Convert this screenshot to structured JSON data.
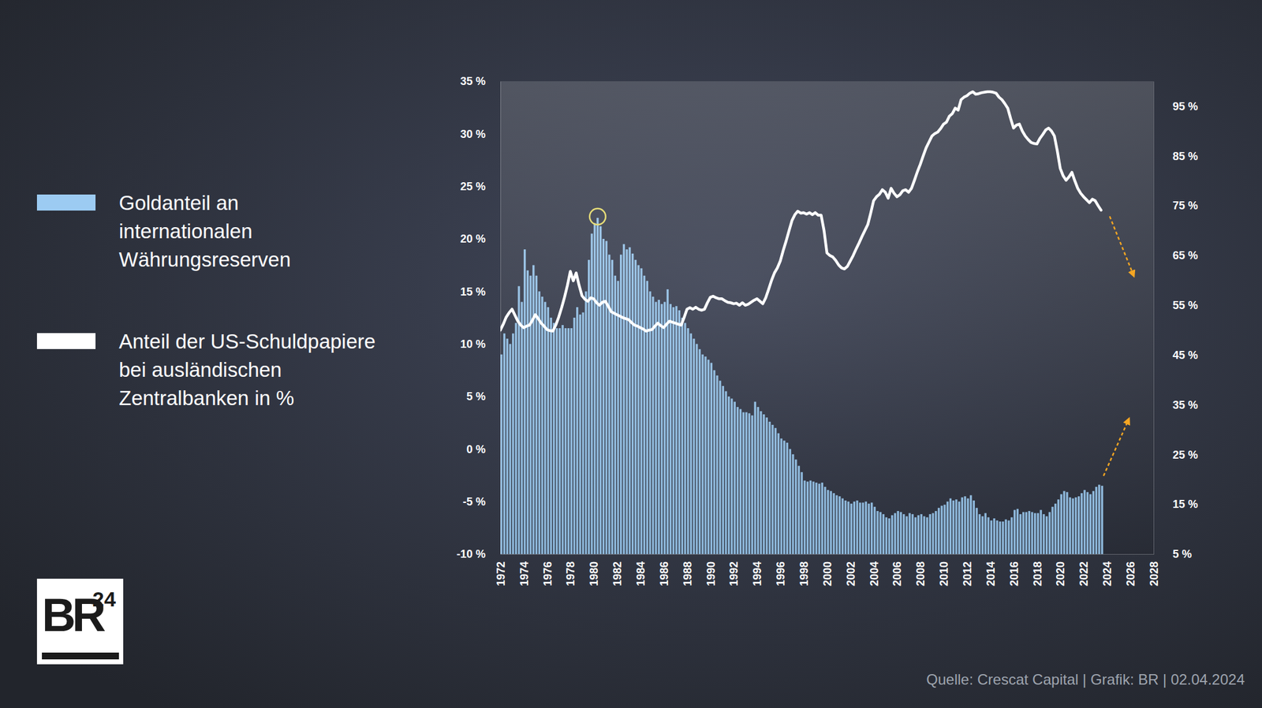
{
  "chart_data": {
    "type": "bar",
    "source": "Quelle: Crescat Capital | Grafik: BR | 02.04.2024",
    "logo": "BR",
    "logo_superscript": "24",
    "grid": false,
    "xlim": [
      1972,
      2028
    ],
    "xticks": [
      1972,
      1974,
      1976,
      1978,
      1980,
      1982,
      1984,
      1986,
      1988,
      1990,
      1992,
      1994,
      1996,
      1998,
      2000,
      2002,
      2004,
      2006,
      2008,
      2010,
      2012,
      2014,
      2016,
      2018,
      2020,
      2022,
      2024,
      2026,
      2028
    ],
    "ylim": [
      -10,
      35
    ],
    "yticks": [
      {
        "value": -10,
        "label": "-10 %"
      },
      {
        "value": -5,
        "label": "-5 %"
      },
      {
        "value": 0,
        "label": "0 %"
      },
      {
        "value": 5,
        "label": "5 %"
      },
      {
        "value": 10,
        "label": "10 %"
      },
      {
        "value": 15,
        "label": "15 %"
      },
      {
        "value": 20,
        "label": "20 %"
      },
      {
        "value": 25,
        "label": "25 %"
      },
      {
        "value": 30,
        "label": "30 %"
      },
      {
        "value": 35,
        "label": "35 %"
      }
    ],
    "y2lim": [
      5,
      100
    ],
    "y2ticks": [
      {
        "value": 5,
        "label": "5 %"
      },
      {
        "value": 15,
        "label": "15 %"
      },
      {
        "value": 25,
        "label": "25 %"
      },
      {
        "value": 35,
        "label": "35 %"
      },
      {
        "value": 45,
        "label": "45 %"
      },
      {
        "value": 55,
        "label": "55 %"
      },
      {
        "value": 65,
        "label": "65 %"
      },
      {
        "value": 75,
        "label": "75 %"
      },
      {
        "value": 85,
        "label": "85 %"
      },
      {
        "value": 95,
        "label": "95 %"
      }
    ],
    "x": [
      1972,
      1972.25,
      1972.5,
      1972.75,
      1973,
      1973.25,
      1973.5,
      1973.75,
      1974,
      1974.25,
      1974.5,
      1974.75,
      1975,
      1975.25,
      1975.5,
      1975.75,
      1976,
      1976.25,
      1976.5,
      1976.75,
      1977,
      1977.25,
      1977.5,
      1977.75,
      1978,
      1978.25,
      1978.5,
      1978.75,
      1979,
      1979.25,
      1979.5,
      1979.75,
      1980,
      1980.25,
      1980.5,
      1980.75,
      1981,
      1981.25,
      1981.5,
      1981.75,
      1982,
      1982.25,
      1982.5,
      1982.75,
      1983,
      1983.25,
      1983.5,
      1983.75,
      1984,
      1984.25,
      1984.5,
      1984.75,
      1985,
      1985.25,
      1985.5,
      1985.75,
      1986,
      1986.25,
      1986.5,
      1986.75,
      1987,
      1987.25,
      1987.5,
      1987.75,
      1988,
      1988.25,
      1988.5,
      1988.75,
      1989,
      1989.25,
      1989.5,
      1989.75,
      1990,
      1990.25,
      1990.5,
      1990.75,
      1991,
      1991.25,
      1991.5,
      1991.75,
      1992,
      1992.25,
      1992.5,
      1992.75,
      1993,
      1993.25,
      1993.5,
      1993.75,
      1994,
      1994.25,
      1994.5,
      1994.75,
      1995,
      1995.25,
      1995.5,
      1995.75,
      1996,
      1996.25,
      1996.5,
      1996.75,
      1997,
      1997.25,
      1997.5,
      1997.75,
      1998,
      1998.25,
      1998.5,
      1998.75,
      1999,
      1999.25,
      1999.5,
      1999.75,
      2000,
      2000.25,
      2000.5,
      2000.75,
      2001,
      2001.25,
      2001.5,
      2001.75,
      2002,
      2002.25,
      2002.5,
      2002.75,
      2003,
      2003.25,
      2003.5,
      2003.75,
      2004,
      2004.25,
      2004.5,
      2004.75,
      2005,
      2005.25,
      2005.5,
      2005.75,
      2006,
      2006.25,
      2006.5,
      2006.75,
      2007,
      2007.25,
      2007.5,
      2007.75,
      2008,
      2008.25,
      2008.5,
      2008.75,
      2009,
      2009.25,
      2009.5,
      2009.75,
      2010,
      2010.25,
      2010.5,
      2010.75,
      2011,
      2011.25,
      2011.5,
      2011.75,
      2012,
      2012.25,
      2012.5,
      2012.75,
      2013,
      2013.25,
      2013.5,
      2013.75,
      2014,
      2014.25,
      2014.5,
      2014.75,
      2015,
      2015.25,
      2015.5,
      2015.75,
      2016,
      2016.25,
      2016.5,
      2016.75,
      2017,
      2017.25,
      2017.5,
      2017.75,
      2018,
      2018.25,
      2018.5,
      2018.75,
      2019,
      2019.25,
      2019.5,
      2019.75,
      2020,
      2020.25,
      2020.5,
      2020.75,
      2021,
      2021.25,
      2021.5,
      2021.75,
      2022,
      2022.25,
      2022.5,
      2022.75,
      2023,
      2023.25,
      2023.5
    ],
    "series": [
      {
        "name": "Goldanteil an\ninternationalen\nWährungsreserven",
        "type": "bar",
        "color": "#9ccbf2",
        "values": [
          9,
          11,
          10.5,
          10,
          11,
          12,
          15.5,
          14,
          19,
          17,
          16.5,
          17.5,
          16.5,
          15,
          14.5,
          14,
          13.5,
          12.5,
          12,
          11.5,
          11.5,
          11.8,
          11.5,
          11.5,
          11.5,
          12.5,
          13.5,
          12.8,
          13,
          15,
          18,
          20.5,
          21.5,
          22,
          21.2,
          20,
          19.8,
          18.5,
          18,
          16.5,
          16,
          18.5,
          19.5,
          19,
          19.2,
          18.6,
          18,
          17.5,
          17.2,
          16.5,
          16,
          15,
          14.5,
          14,
          14.2,
          13.8,
          14,
          15.2,
          13.8,
          13.5,
          13.6,
          13.2,
          12.5,
          12,
          11.5,
          11,
          10.5,
          10,
          9.5,
          9,
          8.8,
          8.5,
          8.2,
          7.5,
          7,
          6.5,
          6,
          5.5,
          5,
          4.8,
          4.5,
          4,
          3.8,
          3.5,
          3.5,
          3.4,
          3.2,
          4.5,
          4,
          3.6,
          3.3,
          3,
          2.6,
          2.3,
          2,
          1.5,
          1,
          0.8,
          0.6,
          0,
          -0.5,
          -1,
          -1.6,
          -2.2,
          -3,
          -3.1,
          -3,
          -3.1,
          -3.2,
          -3.3,
          -3.2,
          -3.6,
          -3.9,
          -4,
          -4.2,
          -4.4,
          -4.5,
          -4.7,
          -4.9,
          -5,
          -5.2,
          -5,
          -4.9,
          -5.1,
          -5.1,
          -5,
          -5.2,
          -5.1,
          -5.5,
          -5.9,
          -6,
          -6.2,
          -6.5,
          -6.6,
          -6.3,
          -6.1,
          -5.9,
          -6,
          -6.2,
          -6.4,
          -6.1,
          -6.2,
          -6.5,
          -6.3,
          -6.2,
          -6.4,
          -6.5,
          -6.2,
          -6.1,
          -5.9,
          -5.6,
          -5.4,
          -5.3,
          -5,
          -4.7,
          -4.9,
          -4.8,
          -5,
          -4.6,
          -4.5,
          -4.7,
          -4.4,
          -4.9,
          -5.6,
          -6.2,
          -6.4,
          -6.1,
          -6.5,
          -6.8,
          -6.6,
          -6.8,
          -6.9,
          -6.9,
          -6.7,
          -6.8,
          -6.5,
          -5.8,
          -5.7,
          -6.2,
          -6,
          -6,
          -5.9,
          -6,
          -6.1,
          -6.1,
          -5.8,
          -6.2,
          -6.4,
          -6,
          -5.5,
          -5.2,
          -4.8,
          -4.3,
          -4,
          -4.1,
          -4.6,
          -4.7,
          -4.6,
          -4.5,
          -4.2,
          -3.9,
          -4.1,
          -4.3,
          -4,
          -3.6,
          -3.4,
          -3.5
        ]
      },
      {
        "name": "Anteil der US-Schuldpapiere\nbei ausländischen\nZentralbanken in %",
        "type": "line",
        "axis": "y2",
        "color": "#ffffff",
        "values": [
          50,
          51.2,
          52.6,
          53.5,
          54.2,
          53,
          51.8,
          51,
          50.5,
          50.8,
          51,
          52,
          53.1,
          52.3,
          51.4,
          50.8,
          50.1,
          49.9,
          49.8,
          51,
          52.6,
          54.5,
          56.6,
          59,
          61.8,
          59.9,
          61.5,
          59,
          56.9,
          56.2,
          55.8,
          56.5,
          56.3,
          55.5,
          55,
          55.6,
          55.8,
          54.8,
          53.7,
          53.4,
          53.1,
          52.8,
          52.5,
          52.3,
          52.1,
          51.5,
          51,
          50.8,
          50.5,
          50.2,
          49.8,
          50,
          50.1,
          50.8,
          51.4,
          50.9,
          50.5,
          51.2,
          51.8,
          51.6,
          51.4,
          51.2,
          51,
          52.5,
          54.2,
          54.5,
          54.2,
          54.6,
          54.2,
          54,
          54.2,
          55.5,
          56.6,
          56.8,
          56.5,
          56.3,
          56.3,
          55.9,
          55.6,
          55.5,
          55.3,
          55.4,
          55,
          55.5,
          55,
          55.2,
          55.6,
          56,
          56.3,
          55.8,
          55.3,
          56.5,
          58.2,
          60,
          61.5,
          62.5,
          63.9,
          66,
          67.9,
          70,
          72,
          73.2,
          73.9,
          73.5,
          73.6,
          73.3,
          73.6,
          73.2,
          73.6,
          73.1,
          73.1,
          70,
          65.5,
          65,
          64.7,
          64,
          63.1,
          62.5,
          62.3,
          62.8,
          63.9,
          65,
          66.3,
          67.5,
          68.8,
          70,
          71.2,
          73.5,
          76,
          76.8,
          77.3,
          78.2,
          77.7,
          76.5,
          78.5,
          77.5,
          76.8,
          77.2,
          78,
          78.2,
          77.7,
          78.5,
          80.1,
          81.8,
          83.3,
          85,
          86.6,
          87.8,
          89,
          89.5,
          89.8,
          90.5,
          91.4,
          91.8,
          93,
          93.5,
          94.6,
          94.2,
          96.3,
          96.8,
          97.1,
          97.6,
          97.9,
          97.4,
          97.5,
          97.7,
          97.8,
          97.9,
          97.9,
          97.8,
          97.6,
          96.8,
          96.3,
          95.5,
          94.6,
          92.5,
          90.6,
          91.2,
          91.4,
          90,
          89,
          88.3,
          87.7,
          87.5,
          87.4,
          88.5,
          89.3,
          90.2,
          90.6,
          90,
          89,
          86,
          82.5,
          81,
          80.1,
          80.8,
          81.7,
          80,
          78.5,
          77.5,
          76.8,
          76.2,
          75.6,
          76.3,
          76,
          75,
          74.1
        ]
      }
    ]
  }
}
